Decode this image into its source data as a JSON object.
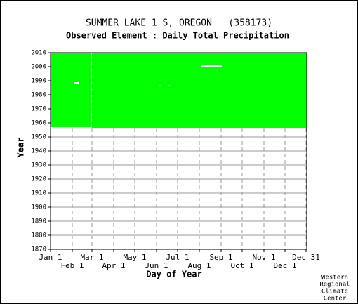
{
  "chart_data": {
    "type": "coverage",
    "title": "SUMMER LAKE 1 S, OREGON   (358173)",
    "subtitle": "Observed Element : Daily Total Precipitation",
    "x_label": "Day of Year",
    "y_label": "Year",
    "credit": [
      "Western",
      "Regional",
      "Climate",
      "Center"
    ],
    "xlim": [
      1,
      366
    ],
    "ylim": [
      1870,
      2010
    ],
    "xticks": [
      {
        "value": 1,
        "label": "Jan 1"
      },
      {
        "value": 32,
        "label": "Feb 1"
      },
      {
        "value": 60,
        "label": "Mar 1"
      },
      {
        "value": 91,
        "label": "Apr 1"
      },
      {
        "value": 121,
        "label": "May 1"
      },
      {
        "value": 152,
        "label": "Jun 1"
      },
      {
        "value": 182,
        "label": "Jul 1"
      },
      {
        "value": 213,
        "label": "Aug 1"
      },
      {
        "value": 244,
        "label": "Sep 1"
      },
      {
        "value": 274,
        "label": "Oct 1"
      },
      {
        "value": 305,
        "label": "Nov 1"
      },
      {
        "value": 335,
        "label": "Dec 1"
      },
      {
        "value": 365,
        "label": "Dec 31"
      }
    ],
    "yticks": [
      1870,
      1880,
      1890,
      1900,
      1910,
      1920,
      1930,
      1940,
      1950,
      1960,
      1970,
      1980,
      1990,
      2000,
      2010
    ],
    "color": "#00ff00",
    "blocks": [
      {
        "days": [
          1,
          59
        ],
        "years": [
          1957,
          2010
        ]
      },
      {
        "days": [
          60,
          366
        ],
        "years": [
          1956,
          2010
        ]
      }
    ],
    "gaps": [
      {
        "days": [
          215,
          245
        ],
        "years": [
          2000,
          2001
        ]
      },
      {
        "days": [
          35,
          41
        ],
        "years": [
          1988,
          1989
        ]
      },
      {
        "days": [
          155,
          158
        ],
        "years": [
          1986,
          1987
        ]
      },
      {
        "days": [
          168,
          171
        ],
        "years": [
          1986,
          1987
        ]
      }
    ]
  }
}
